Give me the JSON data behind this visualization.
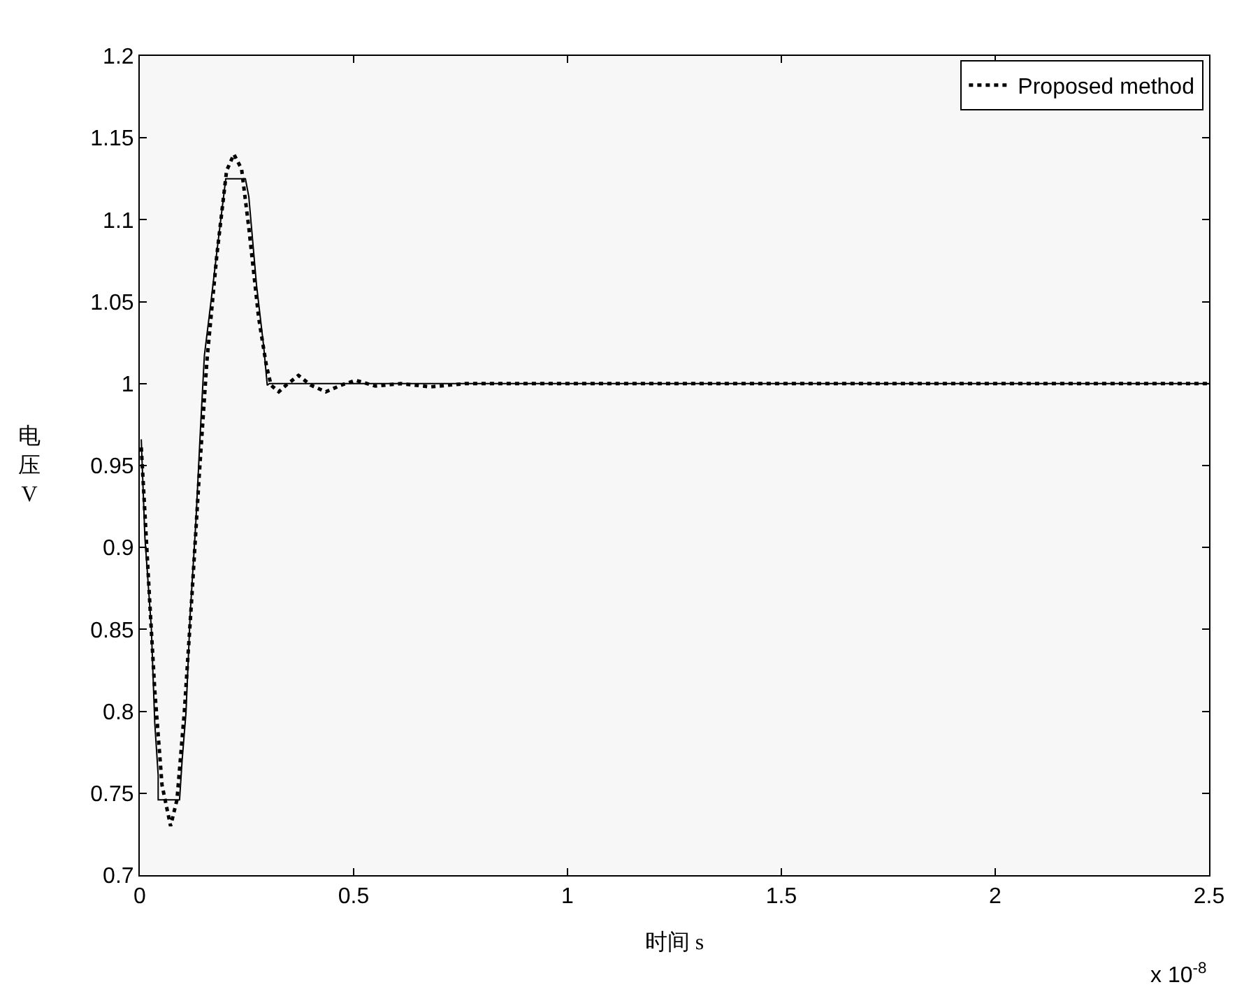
{
  "chart_data": {
    "type": "line",
    "xlabel": "时间 s",
    "ylabel": "电压V",
    "annotations": [
      "x 10$^{-8}$"
    ],
    "xlim": [
      0,
      2.5
    ],
    "xticks": [
      0,
      0.5,
      1,
      1.5,
      2,
      2.5
    ],
    "ylim": [
      0.7,
      1.2
    ],
    "yticks": [
      0.7,
      0.75,
      0.8,
      0.85,
      0.9,
      0.95,
      1,
      1.05,
      1.1,
      1.15,
      1.2
    ],
    "grid": false,
    "legend": "top right",
    "marker": "none",
    "series": [
      {
        "color": "#000000",
        "line_style": "solid",
        "x": [
          0.0035,
          0.012,
          0.027,
          0.035,
          0.043,
          0.043,
          0.093,
          0.099,
          0.108,
          0.118,
          0.131,
          0.142,
          0.151,
          0.166,
          0.18,
          0.201,
          0.247,
          0.255,
          0.273,
          0.29,
          0.298,
          0.303,
          2.5
        ],
        "values": [
          0.966,
          0.906,
          0.851,
          0.793,
          0.761,
          0.746,
          0.746,
          0.77,
          0.799,
          0.86,
          0.915,
          0.973,
          1.017,
          1.049,
          1.08,
          1.125,
          1.125,
          1.114,
          1.06,
          1.022,
          0.999,
          1.0,
          1.0
        ]
      },
      {
        "name": "Proposed method",
        "color": "#000000",
        "line_style": "dotted",
        "x": [
          0.0035,
          0.012,
          0.023,
          0.035,
          0.052,
          0.072,
          0.087,
          0.104,
          0.122,
          0.139,
          0.157,
          0.18,
          0.203,
          0.22,
          0.238,
          0.255,
          0.278,
          0.296,
          0.307,
          0.325,
          0.342,
          0.371,
          0.4,
          0.435,
          0.47,
          0.505,
          0.551,
          0.61,
          0.68,
          0.76,
          2.5
        ],
        "values": [
          0.961,
          0.921,
          0.868,
          0.813,
          0.755,
          0.73,
          0.746,
          0.799,
          0.871,
          0.944,
          1.014,
          1.078,
          1.13,
          1.14,
          1.131,
          1.095,
          1.04,
          1.011,
          0.999,
          0.995,
          0.999,
          1.005,
          0.999,
          0.995,
          0.999,
          1.002,
          0.9985,
          1.0,
          0.998,
          1.0,
          1.0
        ]
      }
    ]
  }
}
